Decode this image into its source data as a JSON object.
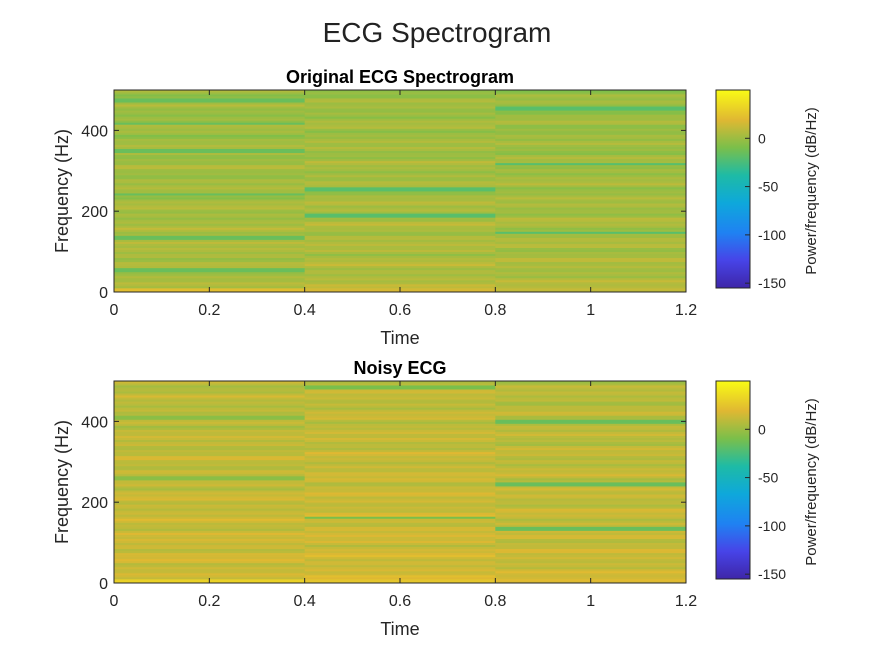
{
  "figure": {
    "title": "ECG Spectrogram"
  },
  "chart_data": [
    {
      "type": "heatmap",
      "title": "Original ECG Spectrogram",
      "xlabel": "Time",
      "ylabel": "Frequency (Hz)",
      "xlim": [
        0,
        1.2
      ],
      "ylim": [
        0,
        500
      ],
      "x_ticks": [
        0,
        0.2,
        0.4,
        0.6,
        0.8,
        1,
        1.2
      ],
      "x_tick_labels": [
        "0",
        "0.2",
        "0.4",
        "0.6",
        "0.8",
        "1",
        "1.2"
      ],
      "y_ticks": [
        0,
        200,
        400
      ],
      "y_tick_labels": [
        "0",
        "200",
        "400"
      ],
      "time_segments": [
        {
          "start": 0,
          "end": 0.4,
          "base_db": 5,
          "dark_lines_hz": [
            55,
            135,
            243,
            350,
            418,
            475
          ],
          "line_db": -15
        },
        {
          "start": 0.4,
          "end": 0.8,
          "base_db": 6,
          "dark_lines_hz": [
            190,
            255
          ],
          "line_db": -20
        },
        {
          "start": 0.8,
          "end": 1.2,
          "base_db": 5,
          "dark_lines_hz": [
            148,
            318,
            455
          ],
          "line_db": -20
        }
      ],
      "colorbar": {
        "label": "Power/frequency (dB/Hz)",
        "range": [
          -155,
          50
        ],
        "ticks": [
          0,
          -50,
          -100,
          -150
        ],
        "tick_labels": [
          "0",
          "-50",
          "-100",
          "-150"
        ],
        "colormap": "parula"
      }
    },
    {
      "type": "heatmap",
      "title": "Noisy ECG",
      "xlabel": "Time",
      "ylabel": "Frequency (Hz)",
      "xlim": [
        0,
        1.2
      ],
      "ylim": [
        0,
        500
      ],
      "x_ticks": [
        0,
        0.2,
        0.4,
        0.6,
        0.8,
        1,
        1.2
      ],
      "x_tick_labels": [
        "0",
        "0.2",
        "0.4",
        "0.6",
        "0.8",
        "1",
        "1.2"
      ],
      "y_ticks": [
        0,
        200,
        400
      ],
      "y_tick_labels": [
        "0",
        "200",
        "400"
      ],
      "time_segments": [
        {
          "start": 0,
          "end": 0.4,
          "base_db": 14,
          "dark_lines_hz": [
            260,
            410
          ],
          "line_db": -5
        },
        {
          "start": 0.4,
          "end": 0.8,
          "base_db": 15,
          "dark_lines_hz": [
            162,
            485
          ],
          "line_db": -10
        },
        {
          "start": 0.8,
          "end": 1.2,
          "base_db": 13,
          "dark_lines_hz": [
            135,
            245,
            400
          ],
          "line_db": -15
        }
      ],
      "colorbar": {
        "label": "Power/frequency (dB/Hz)",
        "range": [
          -155,
          50
        ],
        "ticks": [
          0,
          -50,
          -100,
          -150
        ],
        "tick_labels": [
          "0",
          "-50",
          "-100",
          "-150"
        ],
        "colormap": "parula"
      }
    }
  ]
}
